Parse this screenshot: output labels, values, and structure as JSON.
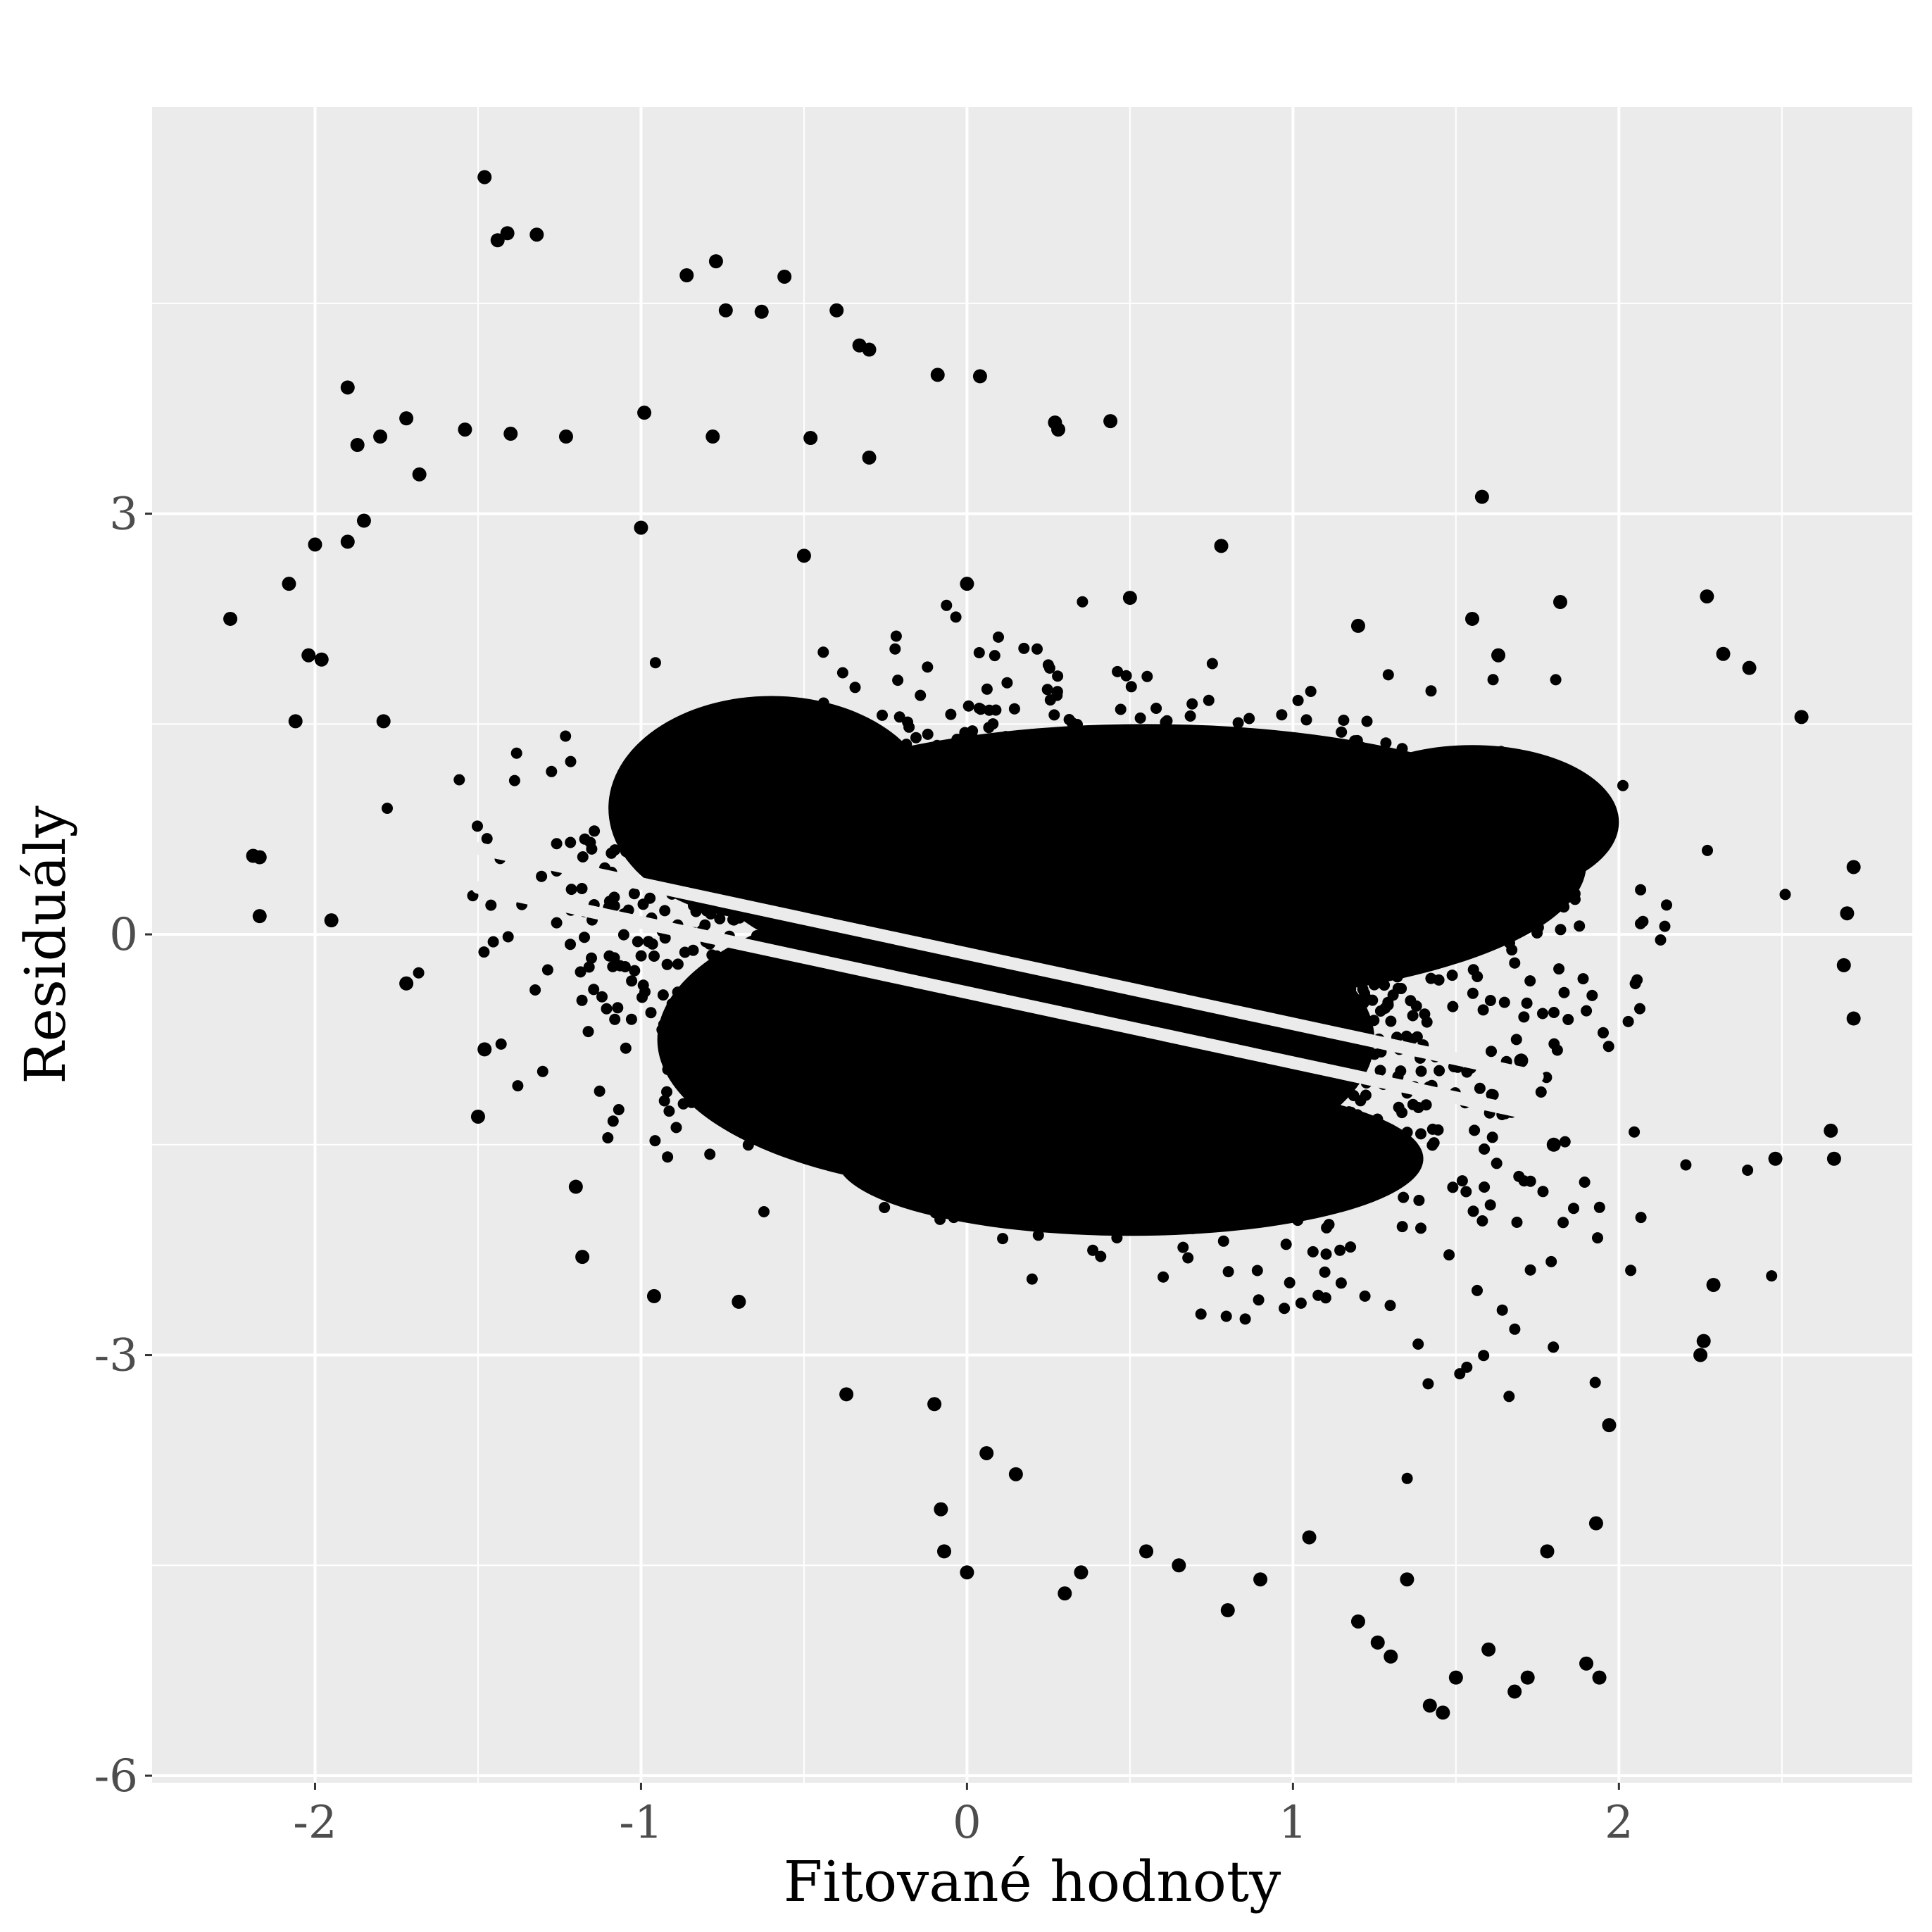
{
  "chart_data": {
    "type": "scatter",
    "title": "",
    "xlabel": "Fitované hodnoty",
    "ylabel": "Residuály",
    "xlim": [
      -2.5,
      2.9
    ],
    "ylim": [
      -6.05,
      5.9
    ],
    "x_ticks": [
      -2,
      -1,
      0,
      1,
      2
    ],
    "x_tick_labels": [
      "-2",
      "-1",
      "0",
      "1",
      "2"
    ],
    "y_ticks": [
      -6,
      -3,
      0,
      3
    ],
    "y_tick_labels": [
      "-6",
      "-3",
      "0",
      "3"
    ],
    "grid": true,
    "legend": "none",
    "colors": {
      "panel": "#ebebeb",
      "grid": "#ffffff",
      "points": "#000000",
      "tick_text": "#4d4d4d"
    },
    "series": [
      {
        "points": [
          [
            -1.48,
            5.4
          ],
          [
            -1.44,
            4.95
          ],
          [
            -1.41,
            5.0
          ],
          [
            -1.32,
            4.99
          ],
          [
            -0.86,
            4.7
          ],
          [
            -0.77,
            4.8
          ],
          [
            -0.56,
            4.69
          ],
          [
            -0.74,
            4.45
          ],
          [
            -0.63,
            4.44
          ],
          [
            -0.4,
            4.45
          ],
          [
            -0.33,
            4.2
          ],
          [
            -0.3,
            4.17
          ],
          [
            -0.09,
            3.99
          ],
          [
            0.04,
            3.98
          ],
          [
            -1.9,
            3.9
          ],
          [
            -1.87,
            3.49
          ],
          [
            -1.8,
            3.55
          ],
          [
            -1.72,
            3.68
          ],
          [
            -1.68,
            3.28
          ],
          [
            -1.54,
            3.6
          ],
          [
            -1.4,
            3.57
          ],
          [
            -1.23,
            3.55
          ],
          [
            -0.99,
            3.72
          ],
          [
            -0.78,
            3.55
          ],
          [
            -0.48,
            3.54
          ],
          [
            -0.3,
            3.4
          ],
          [
            0.27,
            3.65
          ],
          [
            0.28,
            3.6
          ],
          [
            0.44,
            3.66
          ],
          [
            1.58,
            3.12
          ],
          [
            0.78,
            2.77
          ],
          [
            2.27,
            2.41
          ],
          [
            -2.26,
            2.25
          ],
          [
            -2.08,
            2.5
          ],
          [
            -2.0,
            2.78
          ],
          [
            -1.9,
            2.8
          ],
          [
            -1.85,
            2.95
          ],
          [
            -2.02,
            1.99
          ],
          [
            -1.98,
            1.96
          ],
          [
            -2.06,
            1.52
          ],
          [
            -1.79,
            1.52
          ],
          [
            -2.17,
            0.55
          ],
          [
            -2.19,
            0.56
          ],
          [
            -2.17,
            0.13
          ],
          [
            -1.95,
            0.1
          ],
          [
            -1.72,
            -0.35
          ],
          [
            -1.5,
            -1.3
          ],
          [
            -1.48,
            -0.82
          ],
          [
            -1.18,
            -2.3
          ],
          [
            -1.2,
            -1.8
          ],
          [
            -0.96,
            -2.58
          ],
          [
            -0.7,
            -2.62
          ],
          [
            -0.37,
            -3.28
          ],
          [
            -0.1,
            -3.35
          ],
          [
            -0.08,
            -4.1
          ],
          [
            -0.07,
            -4.4
          ],
          [
            0.0,
            -4.55
          ],
          [
            0.06,
            -3.7
          ],
          [
            0.15,
            -3.85
          ],
          [
            0.3,
            -4.7
          ],
          [
            0.35,
            -4.55
          ],
          [
            0.55,
            -4.4
          ],
          [
            0.65,
            -4.5
          ],
          [
            0.8,
            -4.82
          ],
          [
            0.9,
            -4.6
          ],
          [
            1.05,
            -4.3
          ],
          [
            1.2,
            -4.9
          ],
          [
            1.26,
            -5.05
          ],
          [
            1.3,
            -5.15
          ],
          [
            1.35,
            -4.6
          ],
          [
            1.42,
            -5.5
          ],
          [
            1.46,
            -5.55
          ],
          [
            1.5,
            -5.3
          ],
          [
            1.6,
            -5.1
          ],
          [
            1.68,
            -5.4
          ],
          [
            1.72,
            -5.3
          ],
          [
            1.78,
            -4.4
          ],
          [
            1.9,
            -5.2
          ],
          [
            1.94,
            -5.3
          ],
          [
            1.93,
            -4.2
          ],
          [
            1.97,
            -3.5
          ],
          [
            2.25,
            -3.0
          ],
          [
            2.26,
            -2.9
          ],
          [
            2.29,
            -2.5
          ],
          [
            2.48,
            -1.6
          ],
          [
            2.65,
            -1.4
          ],
          [
            2.66,
            -1.6
          ],
          [
            2.72,
            -0.6
          ],
          [
            2.7,
            0.15
          ],
          [
            2.69,
            -0.22
          ],
          [
            2.72,
            0.48
          ],
          [
            2.56,
            1.55
          ],
          [
            2.4,
            1.9
          ],
          [
            2.32,
            2.0
          ],
          [
            1.63,
            1.99
          ],
          [
            1.82,
            2.37
          ],
          [
            1.55,
            2.25
          ],
          [
            1.8,
            -1.5
          ],
          [
            1.7,
            -0.9
          ],
          [
            1.2,
            2.2
          ],
          [
            0.5,
            2.4
          ],
          [
            0.0,
            2.5
          ],
          [
            -0.5,
            2.7
          ],
          [
            -1.0,
            2.9
          ]
        ]
      }
    ],
    "cloud_regions": [
      {
        "cx": 0.55,
        "cy": 0.5,
        "rx": 1.35,
        "ry": 1.0
      },
      {
        "cx": 0.15,
        "cy": -0.75,
        "rx": 1.1,
        "ry": 1.1
      },
      {
        "cx": 0.5,
        "cy": -1.6,
        "rx": 0.9,
        "ry": 0.55
      },
      {
        "cx": -0.6,
        "cy": 0.9,
        "rx": 0.5,
        "ry": 0.8
      },
      {
        "cx": 1.55,
        "cy": 0.8,
        "rx": 0.45,
        "ry": 0.55
      }
    ],
    "gap_bands": [
      {
        "x0": -1.5,
        "x1": 1.75,
        "intercept": -0.138,
        "slope": -0.5,
        "width": 0.09
      },
      {
        "x0": -1.5,
        "x1": 1.75,
        "intercept": -0.415,
        "slope": -0.5,
        "width": 0.09
      }
    ]
  }
}
